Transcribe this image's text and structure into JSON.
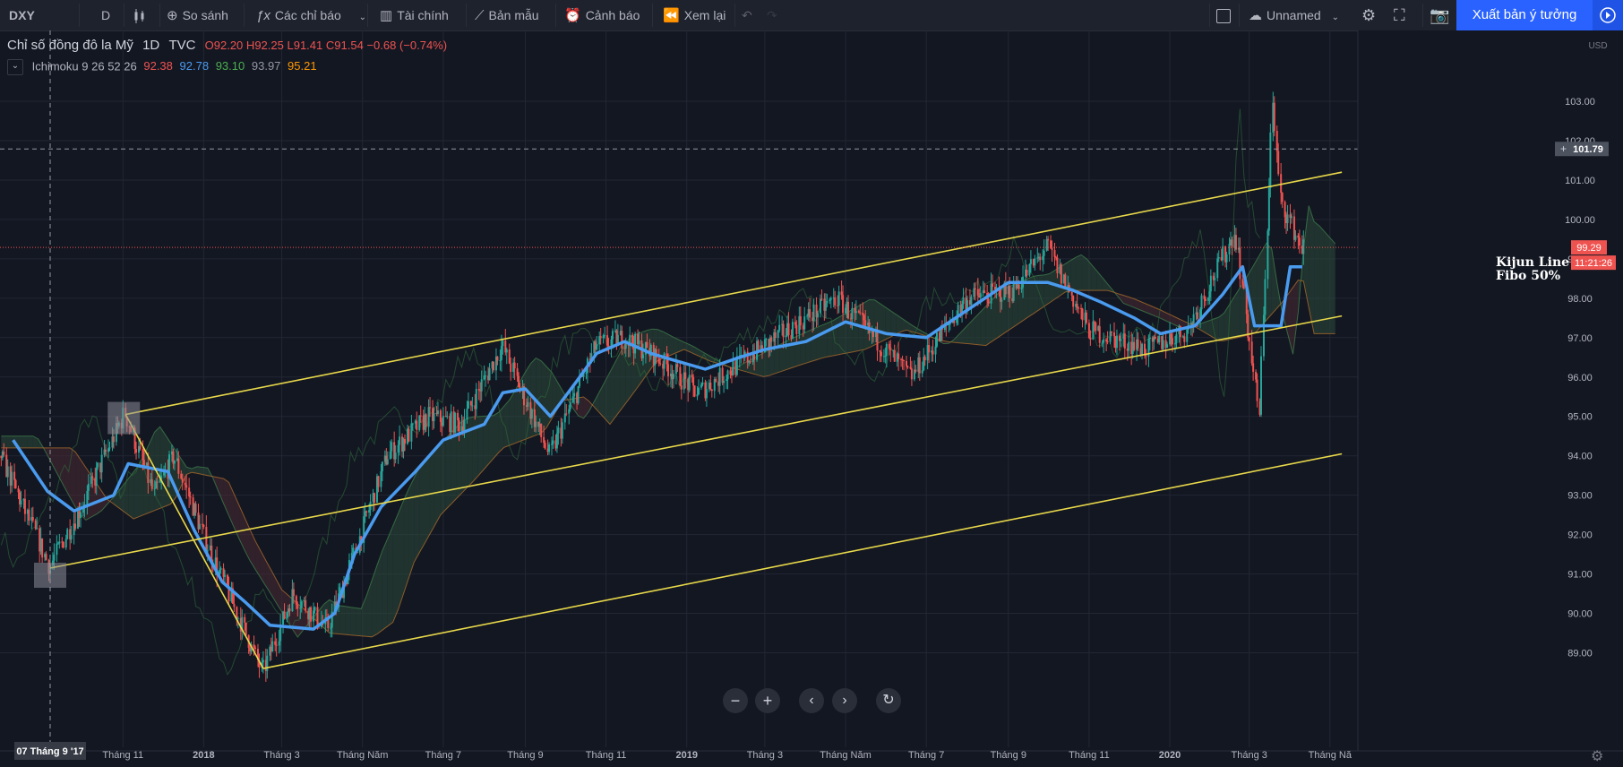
{
  "toolbar": {
    "symbol": "DXY",
    "interval": "D",
    "compare": "So sánh",
    "indicators": "Các chỉ báo",
    "financials": "Tài chính",
    "templates": "Bản mẫu",
    "alerts": "Cảnh báo",
    "replay": "Xem lại",
    "layout_name": "Unnamed",
    "publish": "Xuất bản ý tưởng"
  },
  "legend": {
    "title": "Chỉ số đồng đô la Mỹ",
    "interval": "1D",
    "exchange": "TVC",
    "o_label": "O",
    "o": "92.20",
    "h_label": "H",
    "h": "92.25",
    "l_label": "L",
    "l": "91.41",
    "c_label": "C",
    "c": "91.54",
    "change": "−0.68 (−0.74%)",
    "collapse_icon": "chevron-down-icon"
  },
  "indicator": {
    "name": "Ichimoku",
    "params": "9 26 52 26",
    "v1": "92.38",
    "v2": "92.78",
    "v3": "93.10",
    "v4": "93.97",
    "v5": "95.21"
  },
  "price_axis": {
    "currency": "USD",
    "labels": [
      "103.00",
      "102.00",
      "101.00",
      "100.00",
      "99.00",
      "98.00",
      "97.00",
      "96.00",
      "95.00",
      "94.00",
      "93.00",
      "92.00",
      "91.00",
      "90.00",
      "89.00"
    ],
    "crosshair_price": "101.79",
    "last_price": "99.29",
    "countdown": "11:21:26"
  },
  "time_axis": {
    "crosshair_date": "07 Tháng 9 '17",
    "labels": [
      "Tháng 11",
      "2018",
      "Tháng 3",
      "Tháng Năm",
      "Tháng 7",
      "Tháng 9",
      "Tháng 11",
      "2019",
      "Tháng 3",
      "Tháng Năm",
      "Tháng 7",
      "Tháng 9",
      "Tháng 11",
      "2020",
      "Tháng 3",
      "Tháng Nă"
    ]
  },
  "annotation": {
    "line1": "Kijun Line",
    "line2": "Fibo 50%"
  },
  "colors": {
    "up": "#26a69a",
    "down": "#ef5350",
    "kijun": "#4a9bef",
    "channel": "#e8d84a",
    "arrow": "#3dae4a",
    "cloud_bull": "#2c4a3a",
    "cloud_bear": "#4a2a33"
  },
  "chart_data": {
    "type": "candlestick",
    "title": "Chỉ số đồng đô la Mỹ",
    "ylim": [
      88.6,
      103.2
    ],
    "xlim": [
      "2017-09-01",
      "2020-05-10"
    ],
    "ohlc_last": {
      "o": 92.2,
      "h": 92.25,
      "l": 91.41,
      "c": 91.54
    },
    "kijun_line": [
      [
        "2017-08-10",
        94.4
      ],
      [
        "2017-09-05",
        93.1
      ],
      [
        "2017-09-25",
        92.6
      ],
      [
        "2017-10-25",
        93.0
      ],
      [
        "2017-11-05",
        93.8
      ],
      [
        "2017-12-05",
        93.6
      ],
      [
        "2017-12-25",
        92.1
      ],
      [
        "2018-01-15",
        90.8
      ],
      [
        "2018-02-01",
        90.3
      ],
      [
        "2018-02-20",
        89.7
      ],
      [
        "2018-03-25",
        89.6
      ],
      [
        "2018-04-10",
        90.0
      ],
      [
        "2018-04-25",
        91.5
      ],
      [
        "2018-05-15",
        92.7
      ],
      [
        "2018-06-10",
        93.6
      ],
      [
        "2018-07-01",
        94.4
      ],
      [
        "2018-08-01",
        94.8
      ],
      [
        "2018-08-15",
        95.6
      ],
      [
        "2018-09-01",
        95.7
      ],
      [
        "2018-09-20",
        95.0
      ],
      [
        "2018-10-10",
        95.9
      ],
      [
        "2018-10-25",
        96.6
      ],
      [
        "2018-11-15",
        96.9
      ],
      [
        "2018-12-05",
        96.6
      ],
      [
        "2018-12-25",
        96.4
      ],
      [
        "2019-01-15",
        96.2
      ],
      [
        "2019-02-10",
        96.5
      ],
      [
        "2019-03-01",
        96.7
      ],
      [
        "2019-04-01",
        96.9
      ],
      [
        "2019-05-01",
        97.4
      ],
      [
        "2019-06-01",
        97.1
      ],
      [
        "2019-07-01",
        97.0
      ],
      [
        "2019-08-01",
        97.7
      ],
      [
        "2019-09-01",
        98.4
      ],
      [
        "2019-10-01",
        98.4
      ],
      [
        "2019-10-20",
        98.2
      ],
      [
        "2019-11-10",
        97.9
      ],
      [
        "2019-12-05",
        97.5
      ],
      [
        "2019-12-25",
        97.1
      ],
      [
        "2020-01-20",
        97.3
      ],
      [
        "2020-02-10",
        98.1
      ],
      [
        "2020-02-25",
        98.8
      ],
      [
        "2020-03-05",
        97.3
      ],
      [
        "2020-03-25",
        97.3
      ],
      [
        "2020-04-01",
        98.8
      ],
      [
        "2020-04-10",
        98.8
      ]
    ],
    "price_path": [
      [
        "2017-08-01",
        94.0
      ],
      [
        "2017-09-07",
        91.2
      ],
      [
        "2017-10-01",
        92.7
      ],
      [
        "2017-11-03",
        95.1
      ],
      [
        "2017-11-25",
        93.0
      ],
      [
        "2017-12-10",
        94.0
      ],
      [
        "2018-01-01",
        92.0
      ],
      [
        "2018-02-15",
        88.5
      ],
      [
        "2018-03-10",
        90.5
      ],
      [
        "2018-04-05",
        89.6
      ],
      [
        "2018-04-25",
        91.5
      ],
      [
        "2018-05-20",
        94.0
      ],
      [
        "2018-06-20",
        95.0
      ],
      [
        "2018-07-15",
        94.8
      ],
      [
        "2018-08-15",
        96.8
      ],
      [
        "2018-09-20",
        94.0
      ],
      [
        "2018-10-25",
        96.8
      ],
      [
        "2018-11-15",
        97.0
      ],
      [
        "2018-12-10",
        96.5
      ],
      [
        "2019-01-10",
        95.6
      ],
      [
        "2019-03-10",
        97.0
      ],
      [
        "2019-04-25",
        98.0
      ],
      [
        "2019-06-20",
        96.0
      ],
      [
        "2019-08-01",
        98.0
      ],
      [
        "2019-09-05",
        98.2
      ],
      [
        "2019-10-01",
        99.3
      ],
      [
        "2019-11-01",
        97.2
      ],
      [
        "2019-12-15",
        96.7
      ],
      [
        "2020-01-15",
        97.2
      ],
      [
        "2020-02-20",
        99.7
      ],
      [
        "2020-03-09",
        95.0
      ],
      [
        "2020-03-19",
        103.0
      ],
      [
        "2020-03-25",
        100.5
      ],
      [
        "2020-04-10",
        99.3
      ]
    ],
    "channel_lines": [
      {
        "from": [
          "2017-09-07",
          91.15
        ],
        "to": [
          "2020-05-10",
          97.55
        ]
      },
      {
        "from": [
          "2017-11-03",
          95.05
        ],
        "to": [
          "2020-05-10",
          101.2
        ]
      },
      {
        "from": [
          "2018-02-15",
          88.6
        ],
        "to": [
          "2020-05-10",
          94.05
        ]
      },
      {
        "from": [
          "2017-11-03",
          95.05
        ],
        "to": [
          "2018-02-15",
          88.6
        ]
      }
    ],
    "grid": true,
    "legend_position": "top-left"
  }
}
